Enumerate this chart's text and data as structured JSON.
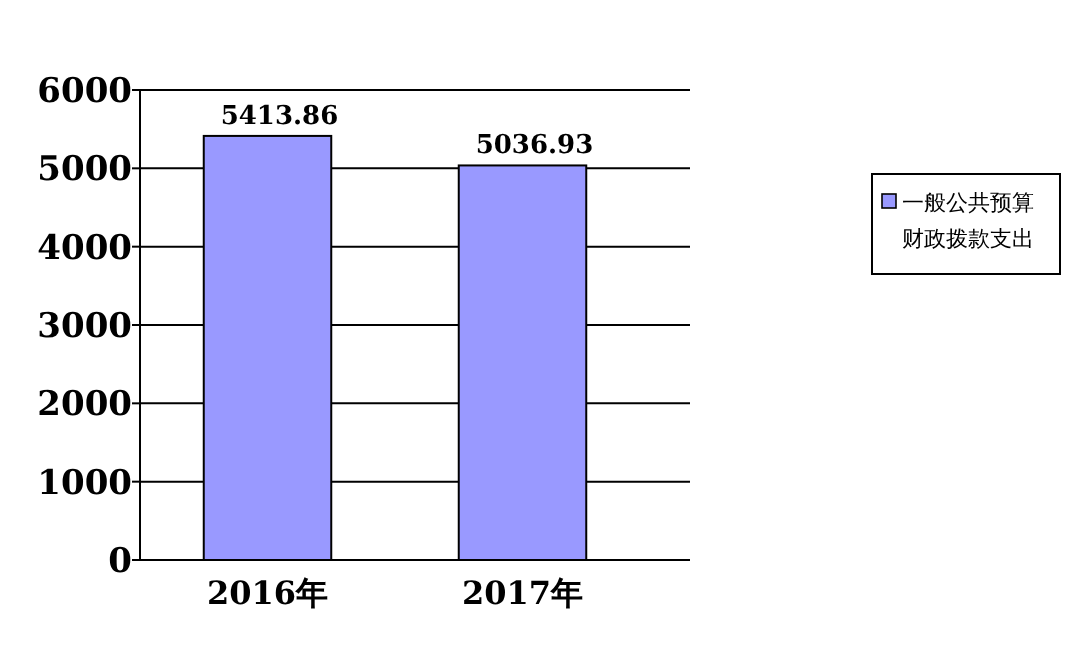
{
  "chart_data": {
    "type": "bar",
    "categories": [
      "2016年",
      "2017年"
    ],
    "series": [
      {
        "name": "一般公共预算财政拨款支出",
        "color": "#9999ff",
        "values": [
          5413.86,
          5036.93
        ]
      }
    ],
    "ylim": [
      0,
      6000
    ],
    "yticks": [
      0,
      1000,
      2000,
      3000,
      4000,
      5000,
      6000
    ],
    "grid": "y",
    "legend": "right",
    "data_labels": true
  }
}
